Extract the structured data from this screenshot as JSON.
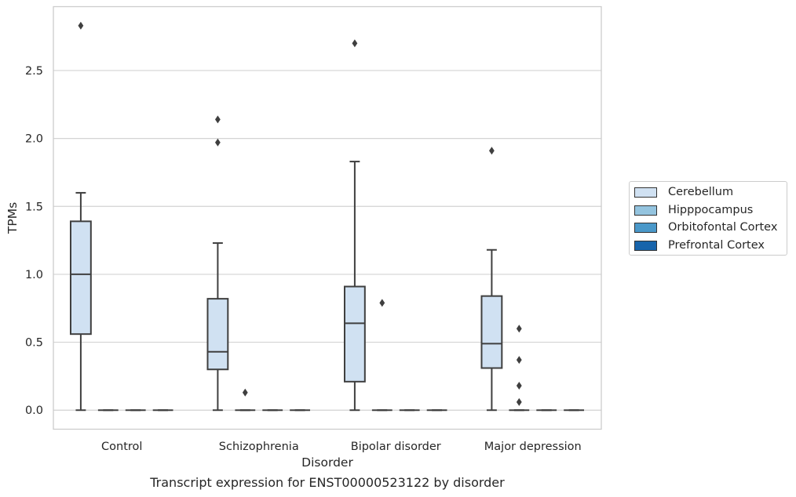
{
  "chart_data": {
    "type": "box",
    "caption": "Transcript expression for ENST00000523122 by disorder",
    "xlabel": "Disorder",
    "ylabel": "TPMs",
    "ylim": [
      -0.14,
      2.97
    ],
    "yticks": [
      "0.0",
      "0.5",
      "1.0",
      "1.5",
      "2.0",
      "2.5"
    ],
    "categories": [
      "Control",
      "Schizophrenia",
      "Bipolar disorder",
      "Major depression"
    ],
    "grid": "horizontal",
    "legend_position": "right",
    "series": [
      {
        "name": "Cerebellum",
        "color": "#d0e1f2",
        "boxes": [
          {
            "whislo": 0.0,
            "q1": 0.56,
            "med": 1.0,
            "q3": 1.39,
            "whishi": 1.6,
            "fliers": [
              2.83
            ]
          },
          {
            "whislo": 0.0,
            "q1": 0.3,
            "med": 0.43,
            "q3": 0.82,
            "whishi": 1.23,
            "fliers": [
              1.97,
              2.14
            ]
          },
          {
            "whislo": 0.0,
            "q1": 0.21,
            "med": 0.64,
            "q3": 0.91,
            "whishi": 1.83,
            "fliers": [
              2.7
            ]
          },
          {
            "whislo": 0.0,
            "q1": 0.31,
            "med": 0.49,
            "q3": 0.84,
            "whishi": 1.18,
            "fliers": [
              1.91
            ]
          }
        ]
      },
      {
        "name": "Hipppocampus",
        "color": "#94c4df",
        "boxes": [
          {
            "whislo": 0.0,
            "q1": 0.0,
            "med": 0.0,
            "q3": 0.0,
            "whishi": 0.0,
            "fliers": []
          },
          {
            "whislo": 0.0,
            "q1": 0.0,
            "med": 0.0,
            "q3": 0.0,
            "whishi": 0.0,
            "fliers": [
              0.13
            ]
          },
          {
            "whislo": 0.0,
            "q1": 0.0,
            "med": 0.0,
            "q3": 0.0,
            "whishi": 0.0,
            "fliers": [
              0.79
            ]
          },
          {
            "whislo": 0.0,
            "q1": 0.0,
            "med": 0.0,
            "q3": 0.0,
            "whishi": 0.0,
            "fliers": [
              0.37,
              0.6,
              0.06,
              0.18
            ]
          }
        ]
      },
      {
        "name": "Orbitofontal Cortex",
        "color": "#4a98c9",
        "boxes": [
          {
            "whislo": 0.0,
            "q1": 0.0,
            "med": 0.0,
            "q3": 0.0,
            "whishi": 0.0,
            "fliers": []
          },
          {
            "whislo": 0.0,
            "q1": 0.0,
            "med": 0.0,
            "q3": 0.0,
            "whishi": 0.0,
            "fliers": []
          },
          {
            "whislo": 0.0,
            "q1": 0.0,
            "med": 0.0,
            "q3": 0.0,
            "whishi": 0.0,
            "fliers": []
          },
          {
            "whislo": 0.0,
            "q1": 0.0,
            "med": 0.0,
            "q3": 0.0,
            "whishi": 0.0,
            "fliers": []
          }
        ]
      },
      {
        "name": "Prefrontal Cortex",
        "color": "#1764ab",
        "boxes": [
          {
            "whislo": 0.0,
            "q1": 0.0,
            "med": 0.0,
            "q3": 0.0,
            "whishi": 0.0,
            "fliers": []
          },
          {
            "whislo": 0.0,
            "q1": 0.0,
            "med": 0.0,
            "q3": 0.0,
            "whishi": 0.0,
            "fliers": []
          },
          {
            "whislo": 0.0,
            "q1": 0.0,
            "med": 0.0,
            "q3": 0.0,
            "whishi": 0.0,
            "fliers": []
          },
          {
            "whislo": 0.0,
            "q1": 0.0,
            "med": 0.0,
            "q3": 0.0,
            "whishi": 0.0,
            "fliers": []
          }
        ]
      }
    ]
  }
}
